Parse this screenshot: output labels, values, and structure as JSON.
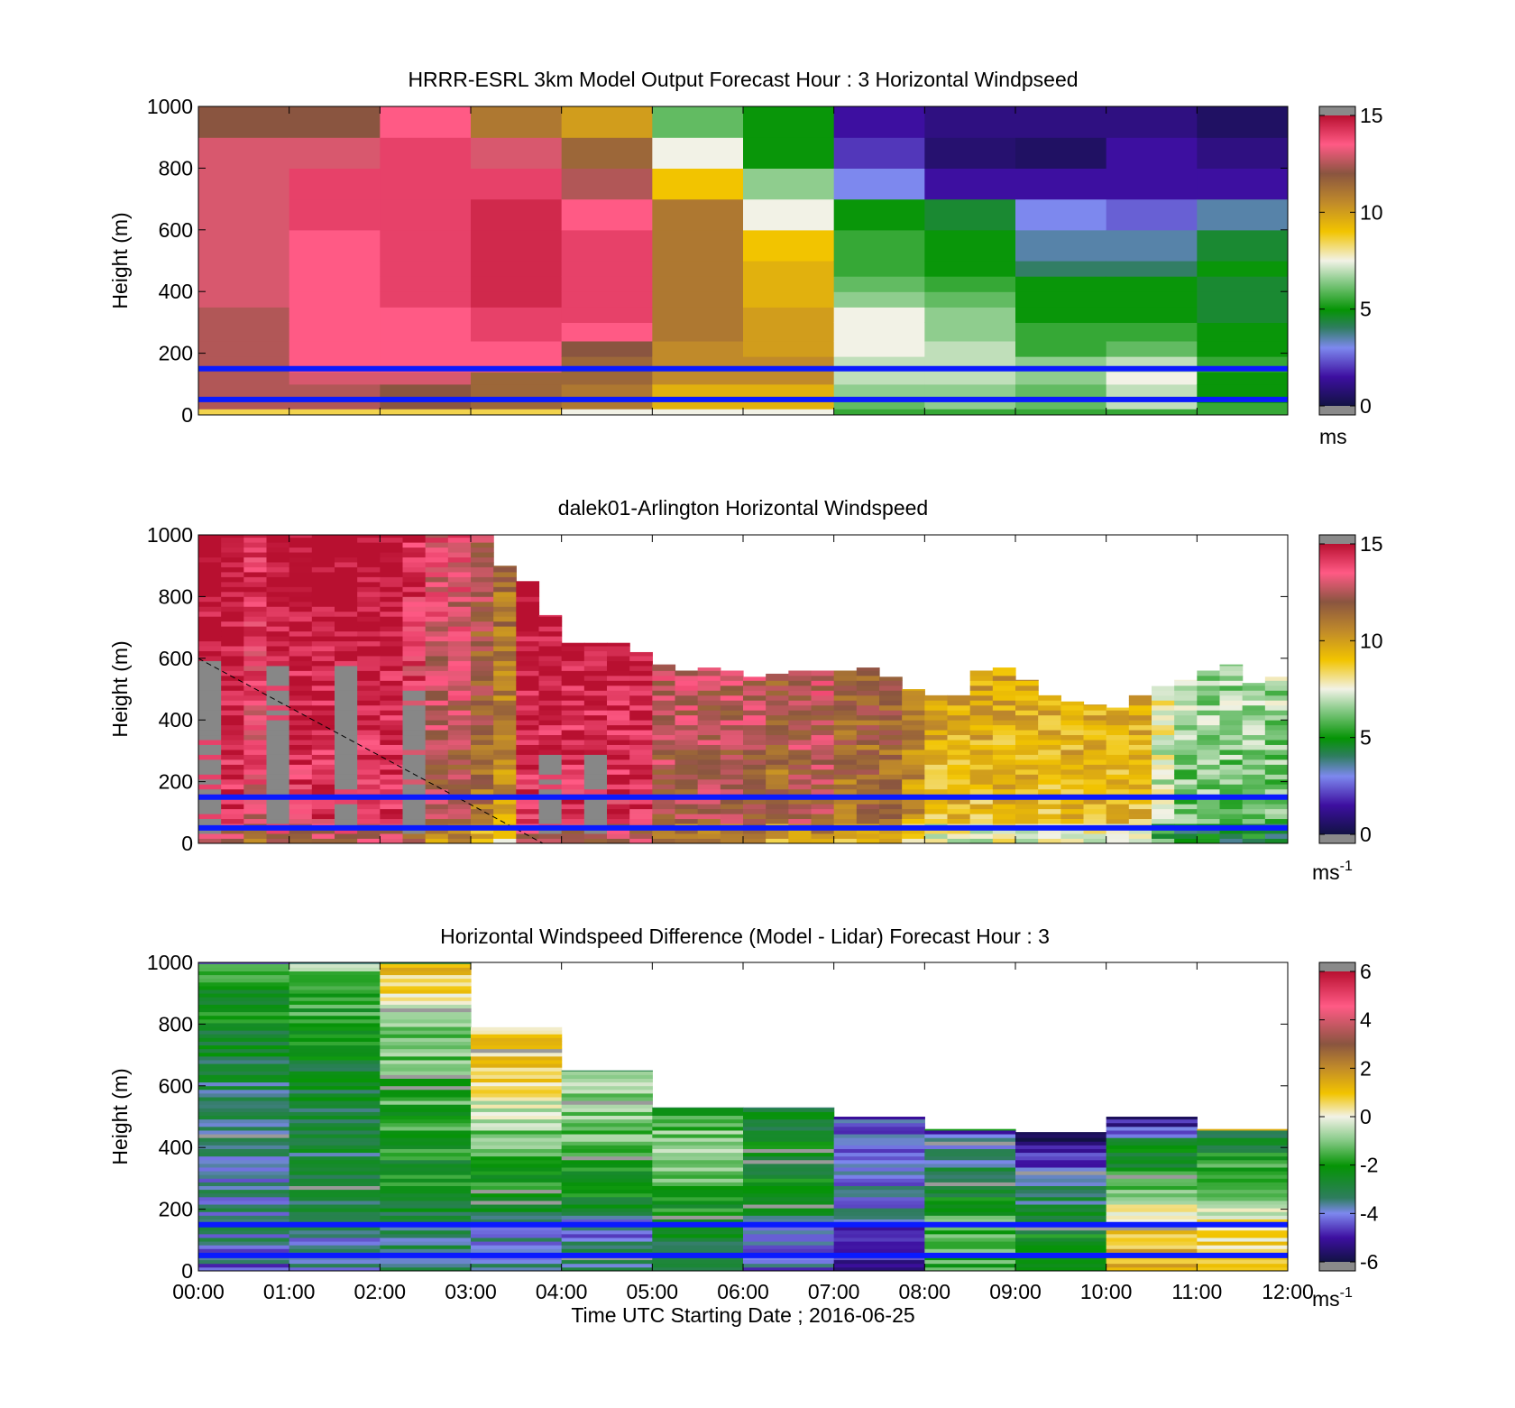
{
  "chart_data": [
    {
      "type": "heatmap",
      "title": "HRRR-ESRL 3km Model Output   Forecast Hour : 3 Horizontal Windpseed",
      "ylabel": "Height (m)",
      "xlabel": "",
      "ylim": [
        0,
        1000
      ],
      "yticks": [
        "0",
        "200",
        "400",
        "600",
        "800",
        "1000"
      ],
      "xlim": [
        0,
        12
      ],
      "colorbar": {
        "range": [
          0,
          15
        ],
        "ticks": [
          "0",
          "5",
          "10",
          "15"
        ],
        "unit": "ms",
        "unit_sup": "",
        "scheme": "speed"
      },
      "reference_heights": [
        150,
        50
      ],
      "x": [
        "00:00",
        "01:00",
        "02:00",
        "03:00",
        "04:00",
        "05:00",
        "06:00",
        "07:00",
        "08:00",
        "09:00",
        "10:00",
        "11:00"
      ],
      "y_bounds": [
        0,
        20,
        40,
        60,
        100,
        140,
        190,
        240,
        300,
        350,
        400,
        450,
        500,
        600,
        700,
        800,
        900,
        1000
      ],
      "z": [
        [
          8.5,
          12.5,
          12.5,
          12.5,
          12.5,
          12.5,
          12.5,
          12.5,
          12.5,
          13.0,
          13.0,
          13.0,
          13.0,
          13.0,
          13.0,
          13.0,
          12.0
        ],
        [
          8.5,
          12.5,
          12.5,
          12.5,
          13.0,
          13.5,
          13.5,
          13.5,
          13.5,
          13.5,
          13.5,
          13.5,
          13.5,
          14.0,
          14.0,
          13.0,
          12.0
        ],
        [
          8.5,
          12.0,
          12.0,
          12.0,
          13.0,
          13.5,
          13.5,
          13.5,
          13.5,
          14.0,
          14.0,
          14.0,
          14.0,
          14.0,
          14.0,
          14.0,
          13.5
        ],
        [
          8.5,
          11.5,
          11.5,
          11.5,
          11.5,
          13.5,
          13.5,
          14.0,
          14.0,
          14.5,
          14.5,
          14.5,
          14.5,
          14.5,
          14.0,
          13.0,
          11.0
        ],
        [
          7.5,
          11.0,
          11.0,
          11.0,
          11.5,
          11.5,
          12.0,
          13.5,
          14.0,
          14.0,
          14.0,
          14.0,
          14.0,
          13.5,
          12.5,
          11.5,
          10.0
        ],
        [
          7.5,
          9.5,
          9.5,
          9.5,
          10.5,
          10.5,
          10.5,
          11.0,
          11.0,
          11.0,
          11.0,
          11.0,
          11.0,
          11.0,
          9.0,
          7.5,
          6.0
        ],
        [
          7.5,
          9.5,
          9.5,
          9.5,
          10.5,
          10.5,
          10.0,
          10.0,
          10.0,
          9.5,
          9.5,
          9.5,
          9.0,
          7.5,
          6.5,
          5.0,
          5.0
        ],
        [
          5.5,
          6.0,
          6.0,
          6.5,
          7.0,
          7.0,
          7.5,
          7.5,
          7.5,
          6.5,
          6.0,
          5.5,
          5.5,
          5.0,
          3.0,
          2.0,
          1.5
        ],
        [
          5.5,
          6.5,
          6.5,
          6.5,
          7.0,
          7.0,
          7.0,
          6.5,
          6.5,
          6.0,
          5.5,
          5.0,
          5.0,
          4.5,
          1.5,
          0.7,
          1.0
        ],
        [
          5.5,
          6.0,
          6.0,
          6.0,
          6.5,
          6.5,
          5.5,
          5.5,
          5.0,
          5.0,
          5.0,
          4.0,
          3.5,
          3.0,
          1.5,
          0.5,
          1.0
        ],
        [
          5.5,
          7.0,
          7.0,
          7.0,
          7.5,
          7.0,
          6.0,
          5.5,
          5.0,
          5.0,
          5.0,
          4.0,
          3.5,
          2.5,
          1.5,
          1.5,
          1.0
        ],
        [
          5.5,
          5.5,
          5.0,
          5.0,
          5.0,
          5.5,
          5.0,
          5.0,
          4.5,
          4.5,
          4.5,
          5.0,
          4.5,
          3.5,
          1.5,
          1.0,
          0.5
        ]
      ]
    },
    {
      "type": "heatmap",
      "title": "dalek01-Arlington  Horizontal Windspeed",
      "ylabel": "Height (m)",
      "xlabel": "",
      "ylim": [
        0,
        1000
      ],
      "yticks": [
        "0",
        "200",
        "400",
        "600",
        "800",
        "1000"
      ],
      "xlim": [
        0,
        12
      ],
      "colorbar": {
        "range": [
          0,
          15
        ],
        "ticks": [
          "0",
          "5",
          "10",
          "15"
        ],
        "unit": "ms",
        "unit_sup": "-1",
        "scheme": "speed"
      },
      "reference_heights": [
        150,
        50
      ],
      "profile_step_hours": 0.25,
      "profile_tops_m": [
        1000,
        1000,
        1000,
        1000,
        1000,
        1000,
        1000,
        1000,
        1000,
        1000,
        1000,
        1000,
        1000,
        900,
        850,
        740,
        650,
        650,
        650,
        620,
        580,
        560,
        570,
        560,
        540,
        550,
        560,
        560,
        560,
        570,
        540,
        500,
        480,
        480,
        560,
        570,
        530,
        480,
        460,
        450,
        440,
        480,
        510,
        530,
        560,
        580,
        520,
        540,
        540
      ],
      "profile_base_speeds_ms": [
        14,
        14,
        13,
        14,
        14,
        14,
        14,
        14,
        14,
        13,
        12,
        12,
        11,
        10,
        14,
        14,
        14,
        14,
        14,
        14,
        12,
        12,
        12,
        12,
        12,
        11,
        12,
        12,
        11,
        11,
        11,
        10,
        9,
        9,
        9,
        9,
        9,
        9,
        9,
        9,
        9,
        9,
        7,
        6,
        6,
        6,
        6,
        6,
        6
      ],
      "profile_gaps_below_m": [
        600,
        0,
        0,
        580,
        0,
        0,
        600,
        0,
        0,
        500,
        0,
        0,
        0,
        0,
        0,
        300,
        0,
        300,
        0,
        0,
        0,
        0,
        0,
        0,
        0,
        0,
        0,
        0,
        0,
        0,
        0,
        0,
        0,
        0,
        0,
        0,
        0,
        0,
        0,
        0,
        0,
        0,
        0,
        0,
        0,
        0,
        0,
        0,
        0
      ]
    },
    {
      "type": "heatmap",
      "title": "Horizontal Windspeed Difference (Model - Lidar) Forecast Hour : 3",
      "ylabel": "Height (m)",
      "xlabel": "Time UTC  Starting Date ; 2016-06-25",
      "ylim": [
        0,
        1000
      ],
      "yticks": [
        "0",
        "200",
        "400",
        "600",
        "800",
        "1000"
      ],
      "xlim": [
        0,
        12
      ],
      "xticks": [
        "00:00",
        "01:00",
        "02:00",
        "03:00",
        "04:00",
        "05:00",
        "06:00",
        "07:00",
        "08:00",
        "09:00",
        "10:00",
        "11:00",
        "12:00"
      ],
      "colorbar": {
        "range": [
          -6,
          6
        ],
        "ticks": [
          "-6",
          "-4",
          "-2",
          "0",
          "2",
          "4",
          "6"
        ],
        "unit": "ms",
        "unit_sup": "-1",
        "scheme": "diff"
      },
      "reference_heights": [
        150,
        50
      ],
      "x": [
        "00:00",
        "01:00",
        "02:00",
        "03:00",
        "04:00",
        "05:00",
        "06:00",
        "07:00",
        "08:00",
        "09:00",
        "10:00",
        "11:00"
      ],
      "column_tops_m": [
        1000,
        1000,
        1000,
        790,
        650,
        530,
        530,
        500,
        460,
        450,
        500,
        460
      ],
      "column_profiles": [
        [
          [
            1000,
            -1.5
          ],
          [
            800,
            -2.5
          ],
          [
            600,
            -3.2
          ],
          [
            450,
            -3.6
          ],
          [
            300,
            -3.8
          ],
          [
            150,
            -3.5
          ],
          [
            0,
            -4.2
          ]
        ],
        [
          [
            1000,
            -0.8
          ],
          [
            900,
            -1.5
          ],
          [
            700,
            -2.5
          ],
          [
            500,
            -3.0
          ],
          [
            300,
            -3.0
          ],
          [
            150,
            -3.5
          ],
          [
            0,
            -4.0
          ]
        ],
        [
          [
            1000,
            1.2
          ],
          [
            900,
            0.3
          ],
          [
            800,
            -0.8
          ],
          [
            600,
            -1.5
          ],
          [
            400,
            -2.0
          ],
          [
            200,
            -2.5
          ],
          [
            150,
            -3.2
          ],
          [
            0,
            -3.6
          ]
        ],
        [
          [
            790,
            0.5
          ],
          [
            650,
            0.8
          ],
          [
            500,
            -0.5
          ],
          [
            350,
            -2.0
          ],
          [
            200,
            -2.5
          ],
          [
            150,
            -4.2
          ],
          [
            0,
            -3.5
          ]
        ],
        [
          [
            650,
            -0.5
          ],
          [
            500,
            -1.0
          ],
          [
            300,
            -2.0
          ],
          [
            200,
            -2.8
          ],
          [
            150,
            -4.3
          ],
          [
            0,
            -3.0
          ]
        ],
        [
          [
            530,
            -2.0
          ],
          [
            400,
            -0.8
          ],
          [
            250,
            -1.5
          ],
          [
            150,
            -2.8
          ],
          [
            0,
            -3.2
          ]
        ],
        [
          [
            530,
            -2.8
          ],
          [
            350,
            -2.5
          ],
          [
            200,
            -2.2
          ],
          [
            150,
            -3.5
          ],
          [
            0,
            -4.2
          ]
        ],
        [
          [
            500,
            -4.5
          ],
          [
            350,
            -4.2
          ],
          [
            200,
            -3.8
          ],
          [
            150,
            -4.5
          ],
          [
            0,
            -4.8
          ]
        ],
        [
          [
            460,
            -5.0
          ],
          [
            400,
            -3.5
          ],
          [
            300,
            -2.8
          ],
          [
            150,
            -1.5
          ],
          [
            0,
            -1.5
          ]
        ],
        [
          [
            450,
            -6.0
          ],
          [
            400,
            -5.2
          ],
          [
            300,
            -4.0
          ],
          [
            150,
            -2.5
          ],
          [
            0,
            -1.5
          ]
        ],
        [
          [
            500,
            -5.5
          ],
          [
            400,
            -2.8
          ],
          [
            250,
            -1.0
          ],
          [
            150,
            1.0
          ],
          [
            0,
            1.2
          ]
        ],
        [
          [
            460,
            -4.0
          ],
          [
            400,
            -2.5
          ],
          [
            250,
            -1.0
          ],
          [
            150,
            0.5
          ],
          [
            0,
            1.0
          ]
        ]
      ]
    }
  ]
}
